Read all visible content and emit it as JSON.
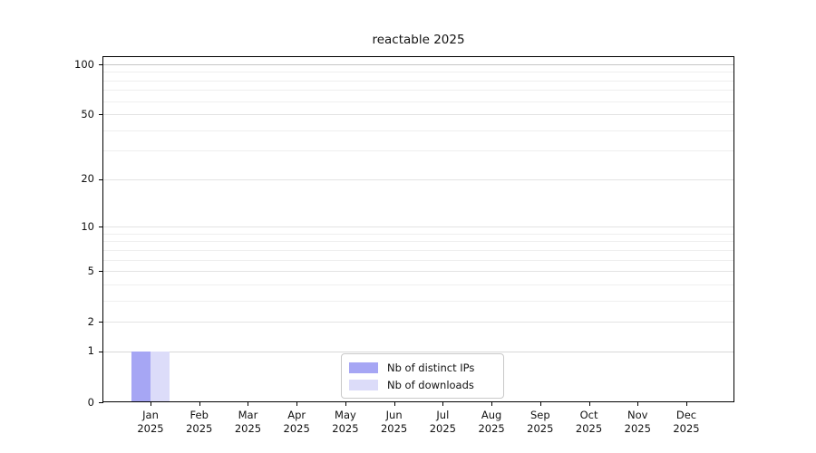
{
  "chart_data": {
    "type": "bar",
    "title": "reactable 2025",
    "x_months": [
      "Jan",
      "Feb",
      "Mar",
      "Apr",
      "May",
      "Jun",
      "Jul",
      "Aug",
      "Sep",
      "Oct",
      "Nov",
      "Dec"
    ],
    "x_year": "2025",
    "y_ticks": [
      100,
      50,
      20,
      10,
      5,
      2,
      1,
      0
    ],
    "y_scale": "log1p",
    "ylim": [
      0,
      113
    ],
    "grid": "horizontal",
    "grid_values_minor": [
      3,
      4,
      6,
      7,
      8,
      9,
      30,
      40,
      60,
      70,
      80,
      90
    ],
    "grid_values_major": [
      1,
      2,
      5,
      10,
      20,
      50,
      100
    ],
    "legend_position": "bottom-center-inside",
    "series": [
      {
        "name": "Nb of distinct IPs",
        "color": "#a6a6f4",
        "values": [
          1,
          0,
          0,
          0,
          0,
          0,
          0,
          0,
          0,
          0,
          0,
          0
        ]
      },
      {
        "name": "Nb of downloads",
        "color": "#dcdcf9",
        "values": [
          1,
          0,
          0,
          0,
          0,
          0,
          0,
          0,
          0,
          0,
          0,
          0
        ]
      }
    ],
    "colors": {
      "axis": "#000000",
      "grid_minor": "#efefef",
      "grid_major": "#e3e3e3",
      "grid_one": "#d8d8d8",
      "grid_hundred": "#c6c6c6",
      "legend_border": "#c9c9c9",
      "background": "#ffffff",
      "text": "#111111"
    }
  }
}
